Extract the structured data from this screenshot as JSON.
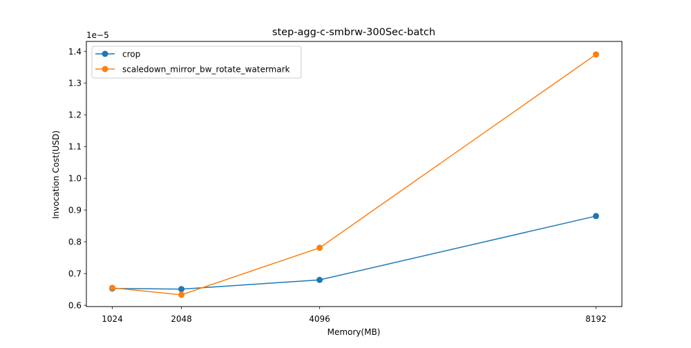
{
  "chart_data": {
    "type": "line",
    "title": "step-agg-c-smbrw-300Sec-batch",
    "xlabel": "Memory(MB)",
    "ylabel": "Invocation Cost(USD)",
    "y_offset_label": "1e−5",
    "x": [
      1024,
      2048,
      4096,
      8192
    ],
    "x_ticks": [
      1024,
      2048,
      4096,
      8192
    ],
    "x_tick_labels": [
      "1024",
      "2048",
      "4096",
      "8192"
    ],
    "y_ticks": [
      0.6,
      0.7,
      0.8,
      0.9,
      1.0,
      1.1,
      1.2,
      1.3,
      1.4
    ],
    "y_tick_labels": [
      "0.6",
      "0.7",
      "0.8",
      "0.9",
      "1.0",
      "1.1",
      "1.2",
      "1.3",
      "1.4"
    ],
    "xlim": [
      640,
      8576
    ],
    "ylim": [
      0.596,
      1.431
    ],
    "grid": false,
    "legend_position": "top-left",
    "series": [
      {
        "name": "crop",
        "color": "#1f77b4",
        "values": [
          0.653,
          0.651,
          0.68,
          0.881
        ]
      },
      {
        "name": "scaledown_mirror_bw_rotate_watermark",
        "color": "#ff7f0e",
        "values": [
          0.655,
          0.633,
          0.781,
          1.39
        ]
      }
    ]
  }
}
